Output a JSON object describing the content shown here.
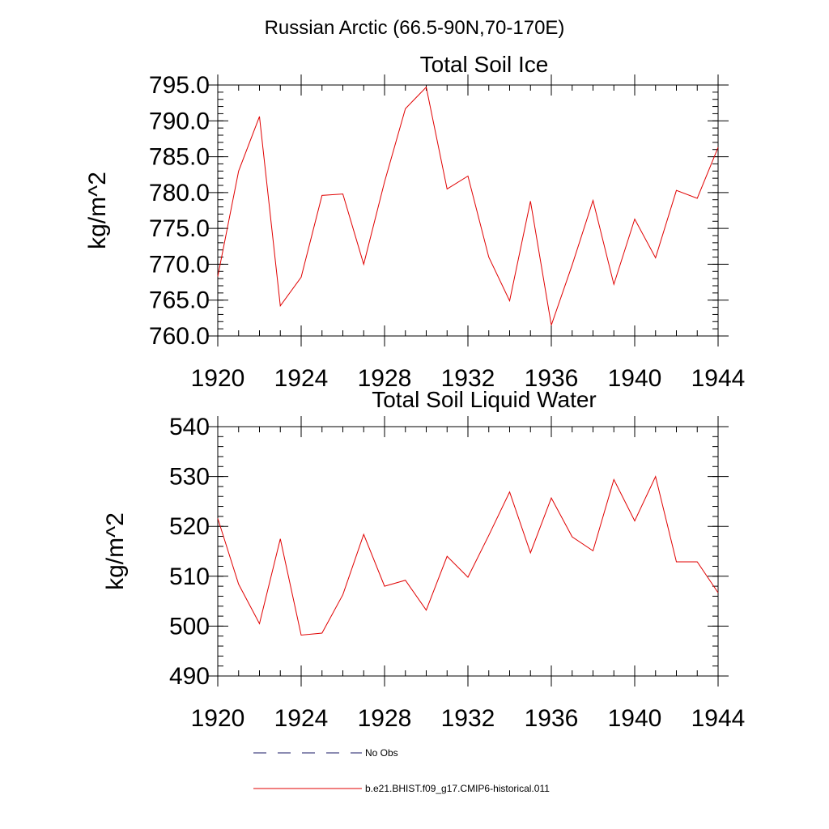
{
  "figure_title": "Russian Arctic (66.5-90N,70-170E)",
  "legend": {
    "entries": [
      {
        "label": "No Obs",
        "color": "#1a1a66",
        "dash": true
      },
      {
        "label": "b.e21.BHIST.f09_g17.CMIP6-historical.011",
        "color": "#e00000",
        "dash": false
      }
    ]
  },
  "chart_data": [
    {
      "type": "line",
      "title": "Total Soil Ice",
      "xlabel": "",
      "ylabel": "kg/m^2",
      "xlim": [
        1920,
        1944
      ],
      "ylim": [
        760,
        795
      ],
      "x_ticks": [
        1920,
        1924,
        1928,
        1932,
        1936,
        1940,
        1944
      ],
      "y_ticks": [
        760,
        765,
        770,
        775,
        780,
        785,
        790,
        795
      ],
      "y_tick_labels": [
        "760.0",
        "765.0",
        "770.0",
        "775.0",
        "780.0",
        "785.0",
        "790.0",
        "795.0"
      ],
      "y_minor_step": 1,
      "x_minor_step": 1,
      "grid": false,
      "series": [
        {
          "color": "#e00000",
          "x": [
            1920,
            1921,
            1922,
            1923,
            1924,
            1925,
            1926,
            1927,
            1928,
            1929,
            1930,
            1931,
            1932,
            1933,
            1934,
            1935,
            1936,
            1937,
            1938,
            1939,
            1940,
            1941,
            1942,
            1943,
            1944
          ],
          "values": [
            768.3,
            783.0,
            790.6,
            764.2,
            768.2,
            779.6,
            779.8,
            770.0,
            781.5,
            791.7,
            794.7,
            780.5,
            782.3,
            771.0,
            764.9,
            778.8,
            761.5,
            769.9,
            778.9,
            767.2,
            776.3,
            770.9,
            780.3,
            779.2,
            786.3
          ]
        }
      ]
    },
    {
      "type": "line",
      "title": "Total Soil Liquid Water",
      "xlabel": "",
      "ylabel": "kg/m^2",
      "xlim": [
        1920,
        1944
      ],
      "ylim": [
        490,
        540
      ],
      "x_ticks": [
        1920,
        1924,
        1928,
        1932,
        1936,
        1940,
        1944
      ],
      "y_ticks": [
        490,
        500,
        510,
        520,
        530,
        540
      ],
      "y_tick_labels": [
        "490",
        "500",
        "510",
        "520",
        "530",
        "540"
      ],
      "y_minor_step": 2,
      "x_minor_step": 1,
      "grid": false,
      "series": [
        {
          "color": "#e00000",
          "x": [
            1920,
            1921,
            1922,
            1923,
            1924,
            1925,
            1926,
            1927,
            1928,
            1929,
            1930,
            1931,
            1932,
            1933,
            1934,
            1935,
            1936,
            1937,
            1938,
            1939,
            1940,
            1941,
            1942,
            1943,
            1944
          ],
          "values": [
            521.6,
            508.4,
            500.5,
            517.5,
            498.2,
            498.6,
            506.3,
            518.4,
            508.0,
            509.2,
            503.2,
            514.0,
            509.8,
            518.2,
            526.9,
            514.7,
            525.7,
            517.9,
            515.1,
            529.4,
            521.1,
            530.0,
            512.9,
            512.9,
            506.7
          ]
        }
      ]
    }
  ]
}
